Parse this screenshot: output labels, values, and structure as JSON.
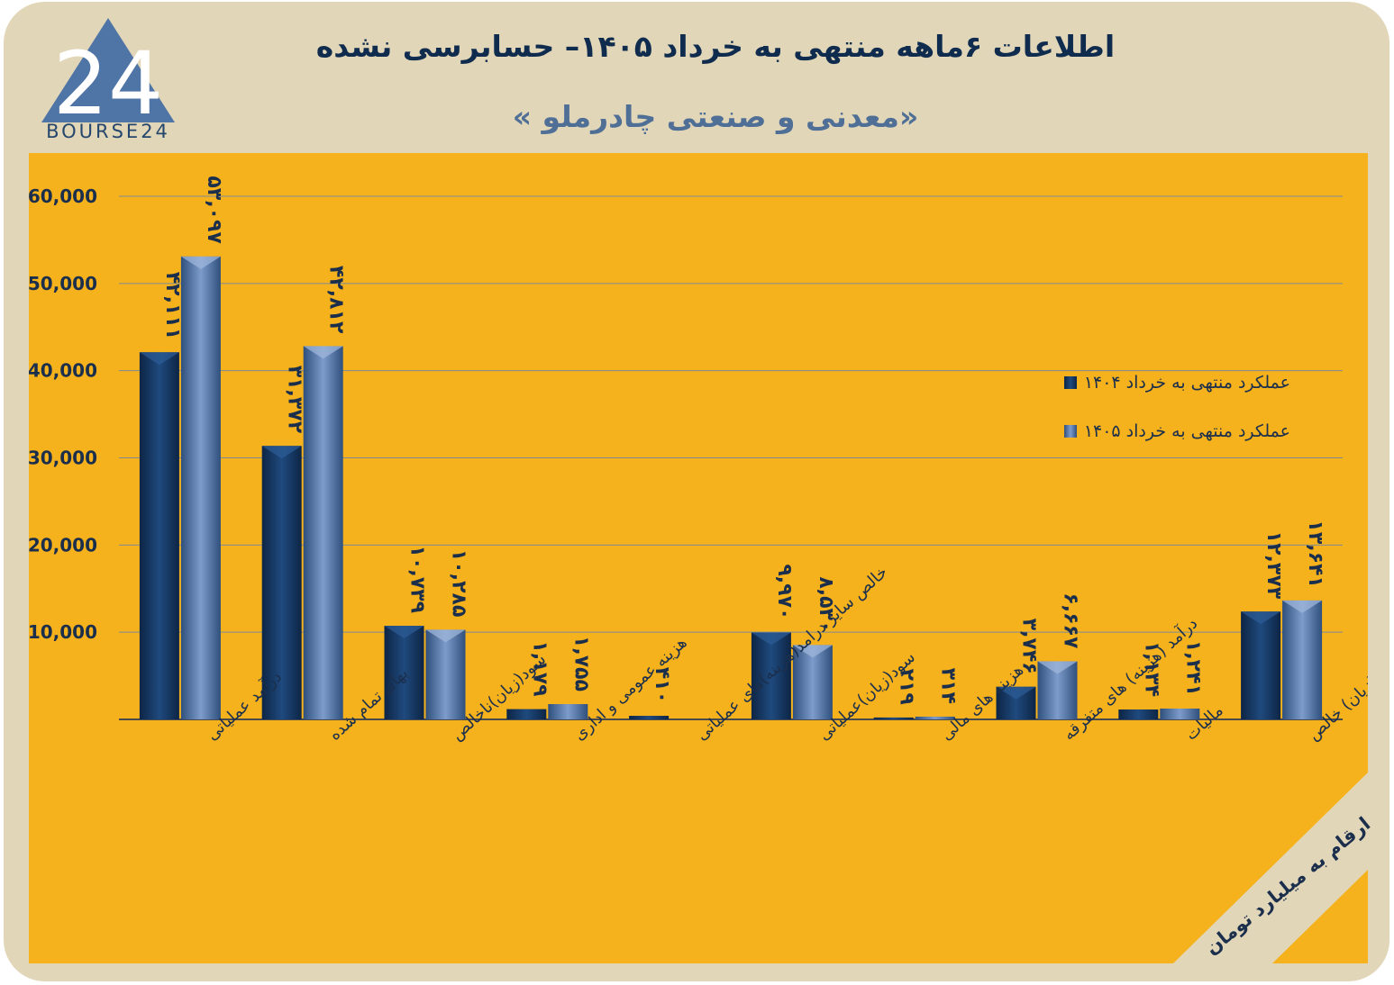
{
  "header": {
    "title": "اطلاعات ۶ماهه منتهی به خرداد ۱۴۰۵– حسابرسی نشده",
    "subtitle": "«معدنی و صنعتی چادرملو »",
    "logo_text": "BOURSE24",
    "logo_mark": "24"
  },
  "unit_note": "ارقام به میلیارد تومان",
  "colors": {
    "background": "#e2d6b8",
    "panel": "#f5b21c",
    "series_1404": "#173a66",
    "series_1405": "#4f72a3",
    "text": "#1b2f4d"
  },
  "chart_data": {
    "type": "bar",
    "ylim": [
      0,
      60000
    ],
    "yticks": [
      {
        "value": 0,
        "label": ""
      },
      {
        "value": 10000,
        "label": "10,000"
      },
      {
        "value": 20000,
        "label": "20,000"
      },
      {
        "value": 30000,
        "label": "30,000"
      },
      {
        "value": 40000,
        "label": "40,000"
      },
      {
        "value": 50000,
        "label": "50,000"
      },
      {
        "value": 60000,
        "label": "60,000"
      }
    ],
    "grid": true,
    "legend_position": "top-right",
    "categories": [
      "درآمد عملیاتی",
      "بهای تمام شده",
      "سود(زیان)ناخالص",
      "هزینه عمومی و اداری",
      "خالص سایر درامد(هزینه)های عملیاتی",
      "سود(زیان)عملیاتی",
      "هزینه های مالی",
      "درآمد (هزینه) های متفرقه",
      "مالیات",
      "سود(زیان) خالص"
    ],
    "series": [
      {
        "name": "عملکرد منتهی به خرداد ۱۴۰۴",
        "values": [
          42111,
          31372,
          10739,
          1179,
          410,
          9970,
          219,
          3746,
          1134,
          12373
        ],
        "labels": [
          "۴۲,۱۱۱",
          "۳۱,۳۷۲",
          "۱۰,۷۳۹",
          "۱,۱۷۹",
          "۴۱۰",
          "۹,۹۷۰",
          "۲۱۹",
          "۳,۷۴۶",
          "۱,۱۳۴",
          "۱۲,۳۷۳"
        ]
      },
      {
        "name": "عملکرد منتهی به خرداد ۱۴۰۵",
        "values": [
          53097,
          42812,
          10285,
          1755,
          null,
          8530,
          314,
          6667,
          1241,
          13641
        ],
        "labels": [
          "۵۳,۰۹۷",
          "۴۲,۸۱۲",
          "۱۰,۲۸۵",
          "۱,۷۵۵",
          null,
          "۸,۵۳۰",
          "۳۱۴",
          "۶,۶۶۷",
          "۱,۲۴۱",
          "۱۳,۶۴۱"
        ]
      }
    ]
  }
}
